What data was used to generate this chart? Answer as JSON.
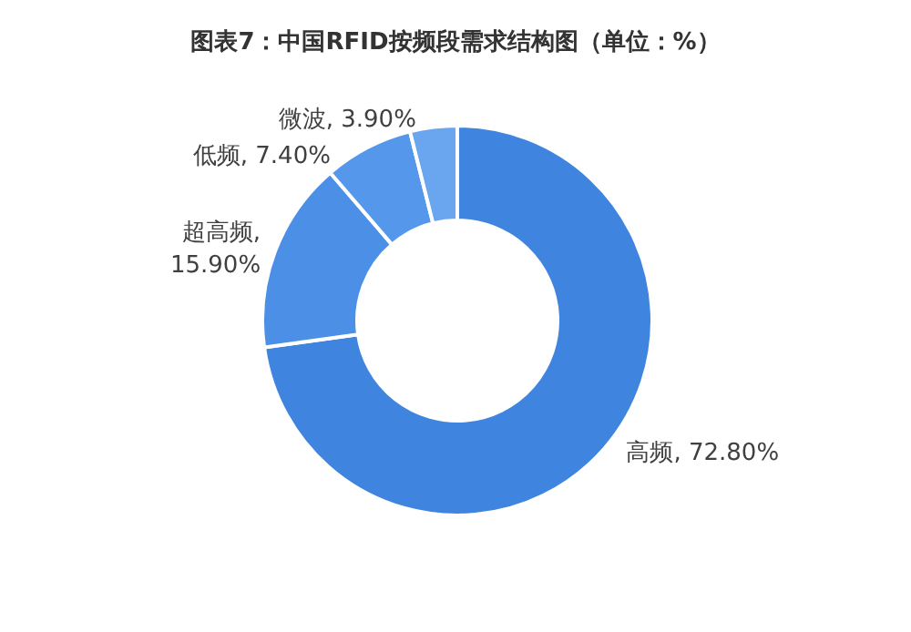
{
  "chart_data": {
    "type": "donut",
    "title": "图表7：中国RFID按频段需求结构图（单位：%）",
    "categories": [
      "高频",
      "超高频",
      "低频",
      "微波"
    ],
    "values": [
      72.8,
      15.9,
      7.4,
      3.9
    ],
    "colors": [
      "#3f85e0",
      "#4b8fe6",
      "#5597ea",
      "#6aa5ef"
    ],
    "value_labels": [
      ", 72.80%",
      ", 15.90%",
      ", 7.40%",
      ", 3.90%"
    ],
    "legend": false
  }
}
